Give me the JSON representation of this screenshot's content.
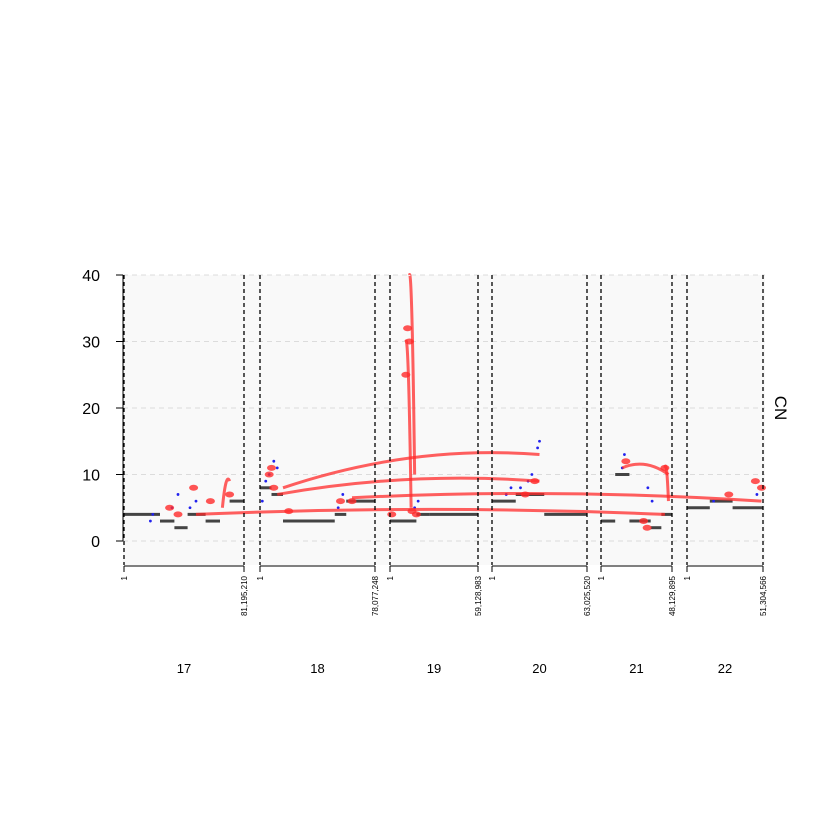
{
  "chart_data": {
    "type": "scatter",
    "title": "",
    "ylabel": "CN",
    "ylim": [
      -4,
      40
    ],
    "yticks": [
      "0",
      "10",
      "20",
      "30",
      "40"
    ],
    "grid": true,
    "chromosomes": [
      {
        "name": "17",
        "start_label": "1",
        "end_label": "81,195,210",
        "length": 81195210
      },
      {
        "name": "18",
        "start_label": "1",
        "end_label": "78,077,248",
        "length": 78077248
      },
      {
        "name": "19",
        "start_label": "1",
        "end_label": "59,128,983",
        "length": 59128983
      },
      {
        "name": "20",
        "start_label": "1",
        "end_label": "63,025,520",
        "length": 63025520
      },
      {
        "name": "21",
        "start_label": "1",
        "end_label": "48,129,895",
        "length": 48129895
      },
      {
        "name": "22",
        "start_label": "1",
        "end_label": "51,304,566",
        "length": 51304566
      }
    ],
    "segments": [
      {
        "chrom": "17",
        "start": 0.0,
        "end": 0.3,
        "cn": 4
      },
      {
        "chrom": "17",
        "start": 0.3,
        "end": 0.42,
        "cn": 3
      },
      {
        "chrom": "17",
        "start": 0.42,
        "end": 0.53,
        "cn": 2
      },
      {
        "chrom": "17",
        "start": 0.53,
        "end": 0.68,
        "cn": 4
      },
      {
        "chrom": "17",
        "start": 0.68,
        "end": 0.8,
        "cn": 3
      },
      {
        "chrom": "17",
        "start": 0.88,
        "end": 1.0,
        "cn": 6
      },
      {
        "chrom": "18",
        "start": 0.0,
        "end": 0.1,
        "cn": 8
      },
      {
        "chrom": "18",
        "start": 0.1,
        "end": 0.2,
        "cn": 7
      },
      {
        "chrom": "18",
        "start": 0.2,
        "end": 0.65,
        "cn": 3
      },
      {
        "chrom": "18",
        "start": 0.65,
        "end": 0.75,
        "cn": 4
      },
      {
        "chrom": "18",
        "start": 0.75,
        "end": 1.0,
        "cn": 6
      },
      {
        "chrom": "19",
        "start": 0.0,
        "end": 0.3,
        "cn": 3
      },
      {
        "chrom": "19",
        "start": 0.3,
        "end": 0.45,
        "cn": 4
      },
      {
        "chrom": "19",
        "start": 0.45,
        "end": 1.0,
        "cn": 4
      },
      {
        "chrom": "20",
        "start": 0.0,
        "end": 0.25,
        "cn": 6
      },
      {
        "chrom": "20",
        "start": 0.25,
        "end": 0.55,
        "cn": 7
      },
      {
        "chrom": "20",
        "start": 0.55,
        "end": 1.0,
        "cn": 4
      },
      {
        "chrom": "21",
        "start": 0.0,
        "end": 0.2,
        "cn": 3
      },
      {
        "chrom": "21",
        "start": 0.2,
        "end": 0.4,
        "cn": 10
      },
      {
        "chrom": "21",
        "start": 0.4,
        "end": 0.7,
        "cn": 3
      },
      {
        "chrom": "21",
        "start": 0.7,
        "end": 0.85,
        "cn": 2
      },
      {
        "chrom": "21",
        "start": 0.85,
        "end": 1.0,
        "cn": 4
      },
      {
        "chrom": "22",
        "start": 0.0,
        "end": 0.3,
        "cn": 5
      },
      {
        "chrom": "22",
        "start": 0.3,
        "end": 0.6,
        "cn": 6
      },
      {
        "chrom": "22",
        "start": 0.6,
        "end": 1.0,
        "cn": 5
      }
    ],
    "junction_points": [
      {
        "chrom": "17",
        "x": 0.22,
        "cn": 3
      },
      {
        "chrom": "17",
        "x": 0.24,
        "cn": 4
      },
      {
        "chrom": "17",
        "x": 0.4,
        "cn": 5
      },
      {
        "chrom": "17",
        "x": 0.45,
        "cn": 7
      },
      {
        "chrom": "17",
        "x": 0.55,
        "cn": 5
      },
      {
        "chrom": "17",
        "x": 0.6,
        "cn": 6
      },
      {
        "chrom": "18",
        "x": 0.02,
        "cn": 6
      },
      {
        "chrom": "18",
        "x": 0.05,
        "cn": 9
      },
      {
        "chrom": "18",
        "x": 0.08,
        "cn": 10
      },
      {
        "chrom": "18",
        "x": 0.12,
        "cn": 12
      },
      {
        "chrom": "18",
        "x": 0.15,
        "cn": 11
      },
      {
        "chrom": "18",
        "x": 0.68,
        "cn": 5
      },
      {
        "chrom": "18",
        "x": 0.72,
        "cn": 7
      },
      {
        "chrom": "19",
        "x": 0.28,
        "cn": 5
      },
      {
        "chrom": "19",
        "x": 0.32,
        "cn": 6
      },
      {
        "chrom": "20",
        "x": 0.15,
        "cn": 7
      },
      {
        "chrom": "20",
        "x": 0.2,
        "cn": 8
      },
      {
        "chrom": "20",
        "x": 0.3,
        "cn": 8
      },
      {
        "chrom": "20",
        "x": 0.38,
        "cn": 9
      },
      {
        "chrom": "20",
        "x": 0.42,
        "cn": 10
      },
      {
        "chrom": "20",
        "x": 0.48,
        "cn": 14
      },
      {
        "chrom": "20",
        "x": 0.5,
        "cn": 15
      },
      {
        "chrom": "21",
        "x": 0.3,
        "cn": 11
      },
      {
        "chrom": "21",
        "x": 0.33,
        "cn": 13
      },
      {
        "chrom": "21",
        "x": 0.66,
        "cn": 8
      },
      {
        "chrom": "21",
        "x": 0.72,
        "cn": 6
      },
      {
        "chrom": "22",
        "x": 0.35,
        "cn": 6
      },
      {
        "chrom": "22",
        "x": 0.92,
        "cn": 7
      }
    ],
    "nodes": [
      {
        "chrom": "17",
        "x": 0.38,
        "cn": 5
      },
      {
        "chrom": "17",
        "x": 0.45,
        "cn": 4
      },
      {
        "chrom": "17",
        "x": 0.58,
        "cn": 8
      },
      {
        "chrom": "17",
        "x": 0.72,
        "cn": 6
      },
      {
        "chrom": "17",
        "x": 0.88,
        "cn": 7
      },
      {
        "chrom": "18",
        "x": 0.08,
        "cn": 10
      },
      {
        "chrom": "18",
        "x": 0.1,
        "cn": 11
      },
      {
        "chrom": "18",
        "x": 0.12,
        "cn": 8
      },
      {
        "chrom": "18",
        "x": 0.25,
        "cn": 4.5
      },
      {
        "chrom": "18",
        "x": 0.7,
        "cn": 6
      },
      {
        "chrom": "18",
        "x": 0.8,
        "cn": 6
      },
      {
        "chrom": "19",
        "x": 0.02,
        "cn": 4
      },
      {
        "chrom": "19",
        "x": 0.18,
        "cn": 25
      },
      {
        "chrom": "19",
        "x": 0.2,
        "cn": 32
      },
      {
        "chrom": "19",
        "x": 0.22,
        "cn": 30
      },
      {
        "chrom": "19",
        "x": 0.25,
        "cn": 4.5
      },
      {
        "chrom": "19",
        "x": 0.3,
        "cn": 4
      },
      {
        "chrom": "20",
        "x": 0.35,
        "cn": 7
      },
      {
        "chrom": "20",
        "x": 0.45,
        "cn": 9
      },
      {
        "chrom": "21",
        "x": 0.35,
        "cn": 12
      },
      {
        "chrom": "21",
        "x": 0.6,
        "cn": 3
      },
      {
        "chrom": "21",
        "x": 0.65,
        "cn": 2
      },
      {
        "chrom": "21",
        "x": 0.9,
        "cn": 11
      },
      {
        "chrom": "22",
        "x": 0.55,
        "cn": 7
      },
      {
        "chrom": "22",
        "x": 0.9,
        "cn": 9
      },
      {
        "chrom": "22",
        "x": 0.98,
        "cn": 8
      }
    ],
    "edges": [
      {
        "from": {
          "chrom": "18",
          "x": 0.2,
          "cn": 8
        },
        "to": {
          "chrom": "20",
          "x": 0.5,
          "cn": 13
        }
      },
      {
        "from": {
          "chrom": "18",
          "x": 0.15,
          "cn": 7
        },
        "to": {
          "chrom": "20",
          "x": 0.5,
          "cn": 9
        }
      },
      {
        "from": {
          "chrom": "18",
          "x": 0.8,
          "cn": 6.5
        },
        "to": {
          "chrom": "22",
          "x": 0.98,
          "cn": 6
        }
      },
      {
        "from": {
          "chrom": "17",
          "x": 0.6,
          "cn": 4
        },
        "to": {
          "chrom": "21",
          "x": 0.9,
          "cn": 4
        }
      },
      {
        "from": {
          "chrom": "19",
          "x": 0.28,
          "cn": 10
        },
        "to": {
          "chrom": "19",
          "x": 0.22,
          "cn": 40
        }
      },
      {
        "from": {
          "chrom": "19",
          "x": 0.24,
          "cn": 5
        },
        "to": {
          "chrom": "19",
          "x": 0.18,
          "cn": 30
        }
      },
      {
        "from": {
          "chrom": "21",
          "x": 0.3,
          "cn": 11
        },
        "to": {
          "chrom": "21",
          "x": 0.95,
          "cn": 10
        }
      },
      {
        "from": {
          "chrom": "21",
          "x": 0.9,
          "cn": 11
        },
        "to": {
          "chrom": "21",
          "x": 0.95,
          "cn": 6
        }
      },
      {
        "from": {
          "chrom": "17",
          "x": 0.82,
          "cn": 5
        },
        "to": {
          "chrom": "17",
          "x": 0.88,
          "cn": 9
        }
      }
    ]
  }
}
